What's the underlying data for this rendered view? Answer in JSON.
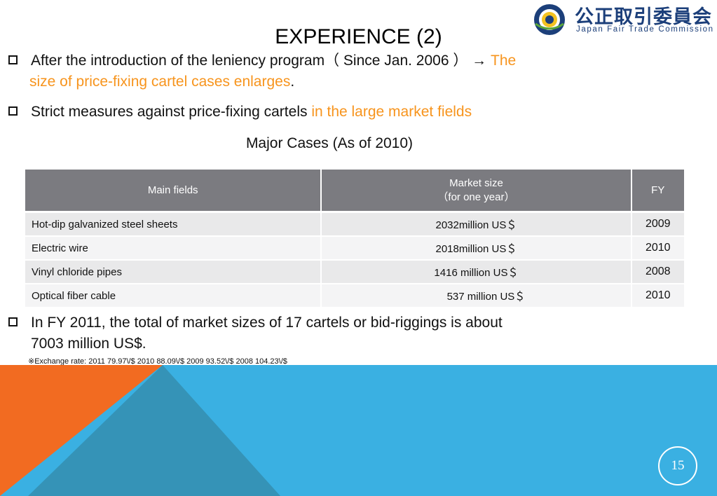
{
  "logo": {
    "jp_text": "公正取引委員会",
    "en_text": "Japan Fair Trade Commission",
    "icon": "jftc-emblem-icon"
  },
  "title": "EXPERIENCE (2)",
  "bullets": [
    {
      "line1_plain": "After the introduction of the leniency program（ Since  Jan. 2006 ）  →",
      "line1_highlight": " The",
      "line2_highlight": "size of price-fixing cartel cases enlarges",
      "line2_plain": "."
    },
    {
      "plain": "Strict measures against price-fixing cartels ",
      "highlight": " in the large market fields"
    },
    {
      "line1": "In FY 2011, the total of market sizes of 17 cartels or bid-riggings is  about",
      "line2": "7003 million US$."
    }
  ],
  "table": {
    "caption": "Major Cases (As of 2010)",
    "headers": {
      "field": "Main  fields",
      "size_line1": "Market size",
      "size_line2": "（for one  year）",
      "fy": "FY"
    },
    "rows": [
      {
        "field": "Hot-dip galvanized steel sheets",
        "size": "2032million US＄",
        "fy": "2009"
      },
      {
        "field": "Electric wire",
        "size": "2018million US＄",
        "fy": "2010"
      },
      {
        "field": "Vinyl chloride pipes",
        "size": "1416 million US＄",
        "fy": "2008"
      },
      {
        "field": "Optical fiber cable",
        "size": "537 million US＄",
        "fy": "2010"
      }
    ]
  },
  "note": "※Exchange rate: 2011 79.97\\/$ 2010  88.09\\/$  2009  93.52\\/$  2008  104.23\\/$",
  "page_number": "15",
  "colors": {
    "highlight": "#f7941d",
    "header_bg": "#7b7b80",
    "orange_shape": "#f26b21",
    "blue_shape": "#3ab0e2",
    "dark_blue_shape": "#3593b7"
  }
}
